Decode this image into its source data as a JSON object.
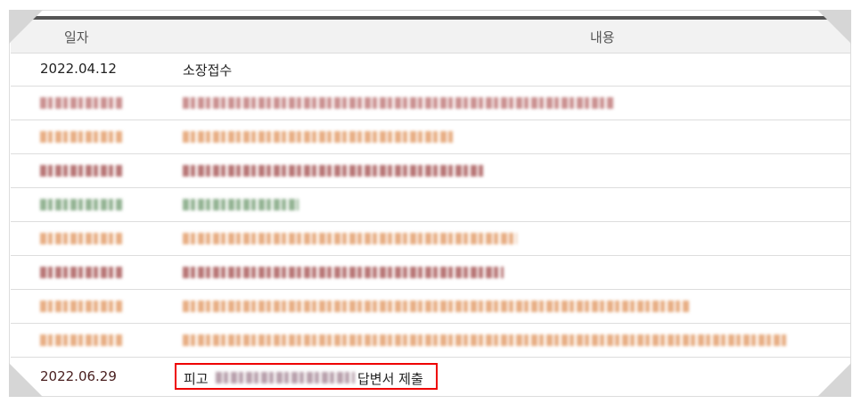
{
  "header": {
    "date_col": "일자",
    "content_col": "내용"
  },
  "rows": [
    {
      "date": "2022.04.12",
      "content": "소장접수",
      "blurred": false
    },
    {
      "blurred": true,
      "color": "#b86a6a"
    },
    {
      "blurred": true,
      "color": "#e0935a"
    },
    {
      "blurred": true,
      "color": "#a04848"
    },
    {
      "blurred": true,
      "color": "#6f9a6f"
    },
    {
      "blurred": true,
      "color": "#e0935a"
    },
    {
      "blurred": true,
      "color": "#a04848"
    },
    {
      "blurred": true,
      "color": "#e0935a"
    },
    {
      "blurred": true,
      "color": "#e0935a"
    },
    {
      "date": "2022.06.29",
      "content_prefix": "피고",
      "content_suffix": "답변서 제출",
      "highlighted": true,
      "highlight_color": "#e00000"
    }
  ]
}
